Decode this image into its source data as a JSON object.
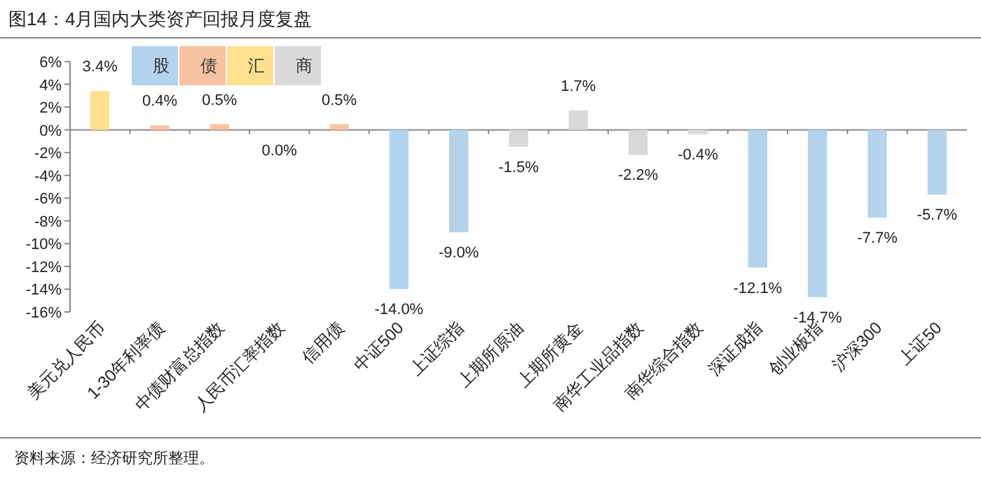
{
  "chart_data": {
    "type": "bar",
    "stacked": true,
    "title": "图14：4月国内大类资产回报月度复盘",
    "categories": [
      "美元兑人民币",
      "1-30年利率债",
      "中债财富总指数",
      "人民币汇率指数",
      "信用债",
      "中证500",
      "上证综指",
      "上期所原油",
      "上期所黄金",
      "南华工业品指数",
      "南华综合指数",
      "深证成指",
      "创业板指",
      "沪深300",
      "上证50"
    ],
    "series": [
      {
        "name": "股",
        "color": "#b4d4ee",
        "values": [
          null,
          null,
          null,
          null,
          null,
          -14.0,
          -9.0,
          null,
          null,
          null,
          null,
          -12.1,
          -14.7,
          -7.7,
          -5.7
        ],
        "value_labels": [
          null,
          null,
          null,
          null,
          null,
          "-14.0%",
          "-9.0%",
          null,
          null,
          null,
          null,
          "-12.1%",
          "-14.7%",
          "-7.7%",
          "-5.7%"
        ]
      },
      {
        "name": "债",
        "color": "#f8c3a2",
        "values": [
          null,
          0.4,
          0.5,
          null,
          0.5,
          null,
          null,
          null,
          null,
          null,
          null,
          null,
          null,
          null,
          null
        ],
        "value_labels": [
          null,
          "0.4%",
          "0.5%",
          null,
          "0.5%",
          null,
          null,
          null,
          null,
          null,
          null,
          null,
          null,
          null,
          null
        ]
      },
      {
        "name": "汇",
        "color": "#fde18e",
        "values": [
          3.4,
          null,
          null,
          0.0,
          null,
          null,
          null,
          null,
          null,
          null,
          null,
          null,
          null,
          null,
          null
        ],
        "value_labels": [
          "3.4%",
          null,
          null,
          "0.0%",
          null,
          null,
          null,
          null,
          null,
          null,
          null,
          null,
          null,
          null,
          null
        ]
      },
      {
        "name": "商",
        "color": "#d9d9d9",
        "values": [
          null,
          null,
          null,
          null,
          null,
          null,
          null,
          -1.5,
          1.7,
          -2.2,
          -0.4,
          null,
          null,
          null,
          null
        ],
        "value_labels": [
          null,
          null,
          null,
          null,
          null,
          null,
          null,
          "-1.5%",
          "1.7%",
          "-2.2%",
          "-0.4%",
          null,
          null,
          null,
          null
        ]
      }
    ],
    "ylim": [
      -16,
      6
    ],
    "yticks": [
      {
        "value": 6,
        "label": "6%"
      },
      {
        "value": 4,
        "label": "4%"
      },
      {
        "value": 2,
        "label": "2%"
      },
      {
        "value": 0,
        "label": "0%"
      },
      {
        "value": -2,
        "label": "-2%"
      },
      {
        "value": -4,
        "label": "-4%"
      },
      {
        "value": -6,
        "label": "-6%"
      },
      {
        "value": -8,
        "label": "-8%"
      },
      {
        "value": -10,
        "label": "-10%"
      },
      {
        "value": -12,
        "label": "-12%"
      },
      {
        "value": -14,
        "label": "-14%"
      },
      {
        "value": -16,
        "label": "-16%"
      }
    ],
    "legend": "top left",
    "annotations": [
      "资料来源：经济研究所整理。"
    ]
  }
}
